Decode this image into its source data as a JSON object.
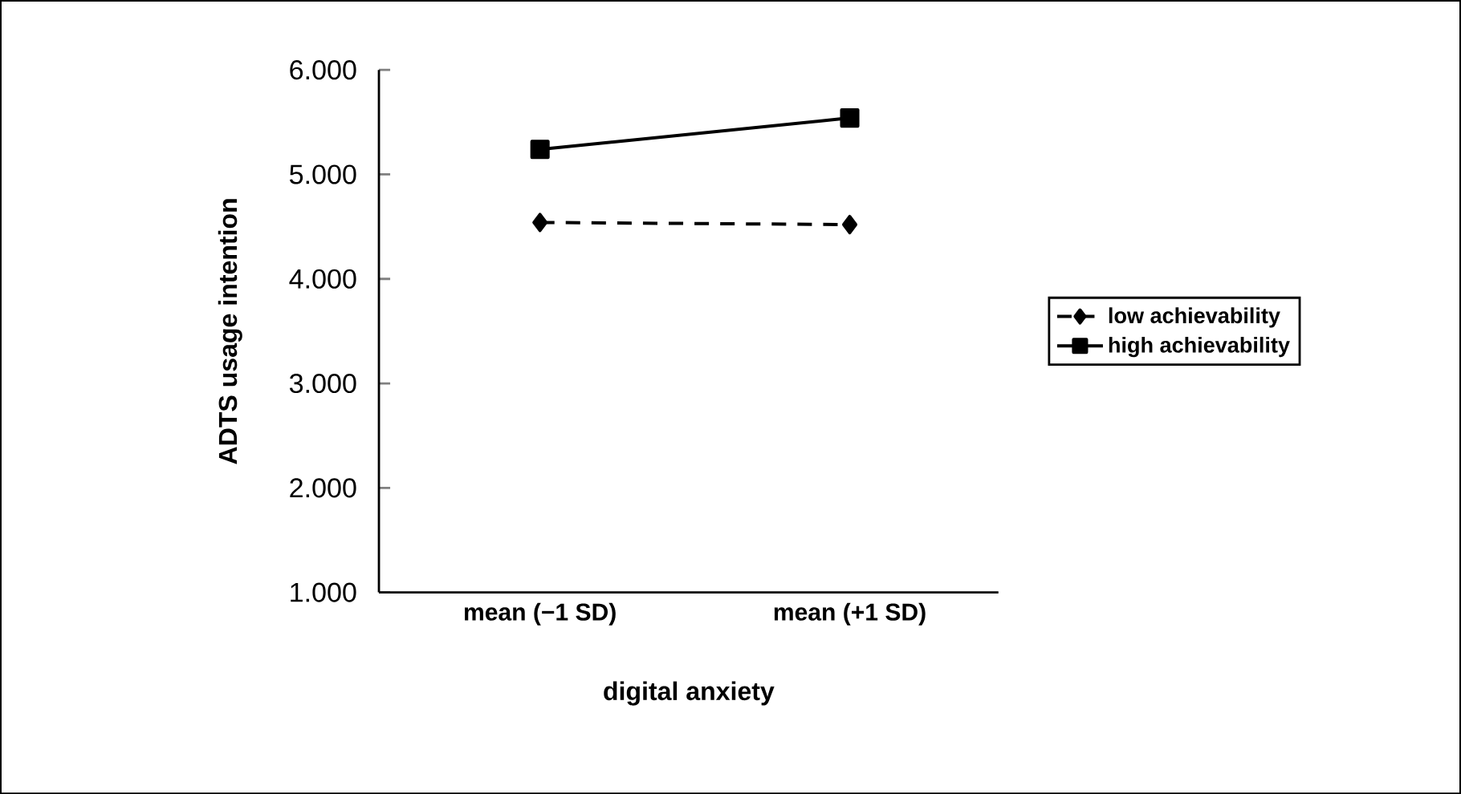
{
  "chart_data": {
    "type": "line",
    "xlabel": "digital anxiety",
    "ylabel": "ADTS usage intention",
    "categories": [
      "mean (−1 SD)",
      "mean (+1 SD)"
    ],
    "series": [
      {
        "name": "low achievability",
        "color": "#000000",
        "values": [
          4.54,
          4.52
        ],
        "marker": "diamond",
        "line_style": "dashed"
      },
      {
        "name": "high achievability",
        "color": "#000000",
        "values": [
          5.24,
          5.54
        ],
        "marker": "square",
        "line_style": "solid"
      }
    ],
    "ylim": [
      1,
      6
    ],
    "yticks": [
      {
        "value": 1,
        "label": "1.000"
      },
      {
        "value": 2,
        "label": "2.000"
      },
      {
        "value": 3,
        "label": "3.000"
      },
      {
        "value": 4,
        "label": "4.000"
      },
      {
        "value": 5,
        "label": "5.000"
      },
      {
        "value": 6,
        "label": "6.000"
      }
    ],
    "grid": false,
    "legend": "right"
  }
}
